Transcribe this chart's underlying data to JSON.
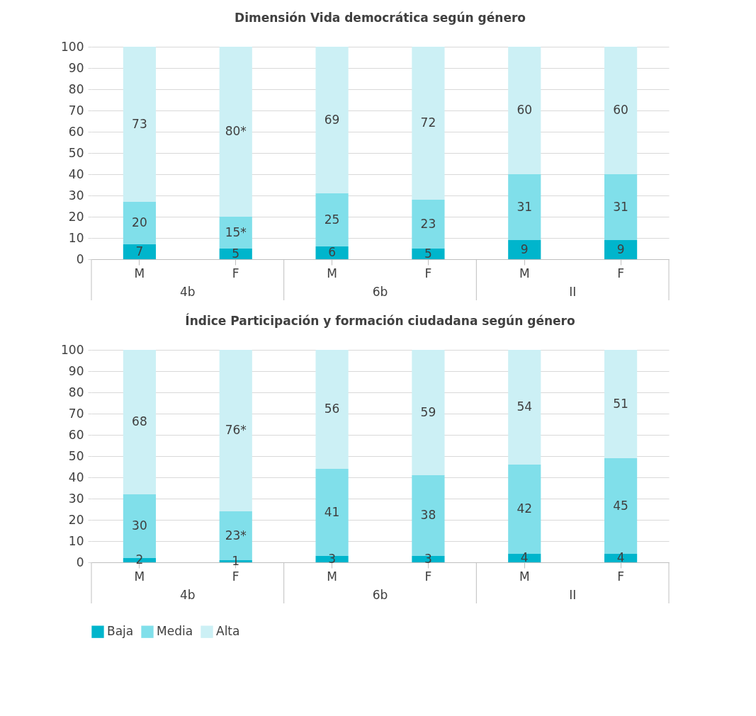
{
  "chart_data": [
    {
      "type": "bar",
      "stacked": true,
      "title": "Dimensión Vida democrática según género",
      "categories": [
        "M",
        "F",
        "M",
        "F",
        "M",
        "F"
      ],
      "annotations": [
        "4b",
        "6b",
        "II"
      ],
      "ylim": [
        0,
        100
      ],
      "yticks": [
        0,
        10,
        20,
        30,
        40,
        50,
        60,
        70,
        80,
        90,
        100
      ],
      "grid": "y",
      "legend": "bottom",
      "series": [
        {
          "name": "Baja",
          "color": "#00b5cc",
          "values": [
            7,
            5,
            6,
            5,
            9,
            9
          ],
          "value_labels": [
            "7",
            "5",
            "6",
            "5",
            "9",
            "9"
          ]
        },
        {
          "name": "Media",
          "color": "#80dfea",
          "values": [
            20,
            15,
            25,
            23,
            31,
            31
          ],
          "value_labels": [
            "20",
            "15*",
            "25",
            "23",
            "31",
            "31"
          ]
        },
        {
          "name": "Alta",
          "color": "#ccf0f5",
          "values": [
            73,
            80,
            69,
            72,
            60,
            60
          ],
          "value_labels": [
            "73",
            "80*",
            "69",
            "72",
            "60",
            "60"
          ]
        }
      ]
    },
    {
      "type": "bar",
      "stacked": true,
      "title": "Índice Participación y formación ciudadana según género",
      "categories": [
        "M",
        "F",
        "M",
        "F",
        "M",
        "F"
      ],
      "annotations": [
        "4b",
        "6b",
        "II"
      ],
      "ylim": [
        0,
        100
      ],
      "yticks": [
        0,
        10,
        20,
        30,
        40,
        50,
        60,
        70,
        80,
        90,
        100
      ],
      "grid": "y",
      "legend": "bottom",
      "series": [
        {
          "name": "Baja",
          "color": "#00b5cc",
          "values": [
            2,
            1,
            3,
            3,
            4,
            4
          ],
          "value_labels": [
            "2",
            "1",
            "3",
            "3",
            "4",
            "4"
          ]
        },
        {
          "name": "Media",
          "color": "#80dfea",
          "values": [
            30,
            23,
            41,
            38,
            42,
            45
          ],
          "value_labels": [
            "30",
            "23*",
            "41",
            "38",
            "42",
            "45"
          ]
        },
        {
          "name": "Alta",
          "color": "#ccf0f5",
          "values": [
            68,
            76,
            56,
            59,
            54,
            51
          ],
          "value_labels": [
            "68",
            "76*",
            "56",
            "59",
            "54",
            "51"
          ]
        }
      ]
    }
  ]
}
